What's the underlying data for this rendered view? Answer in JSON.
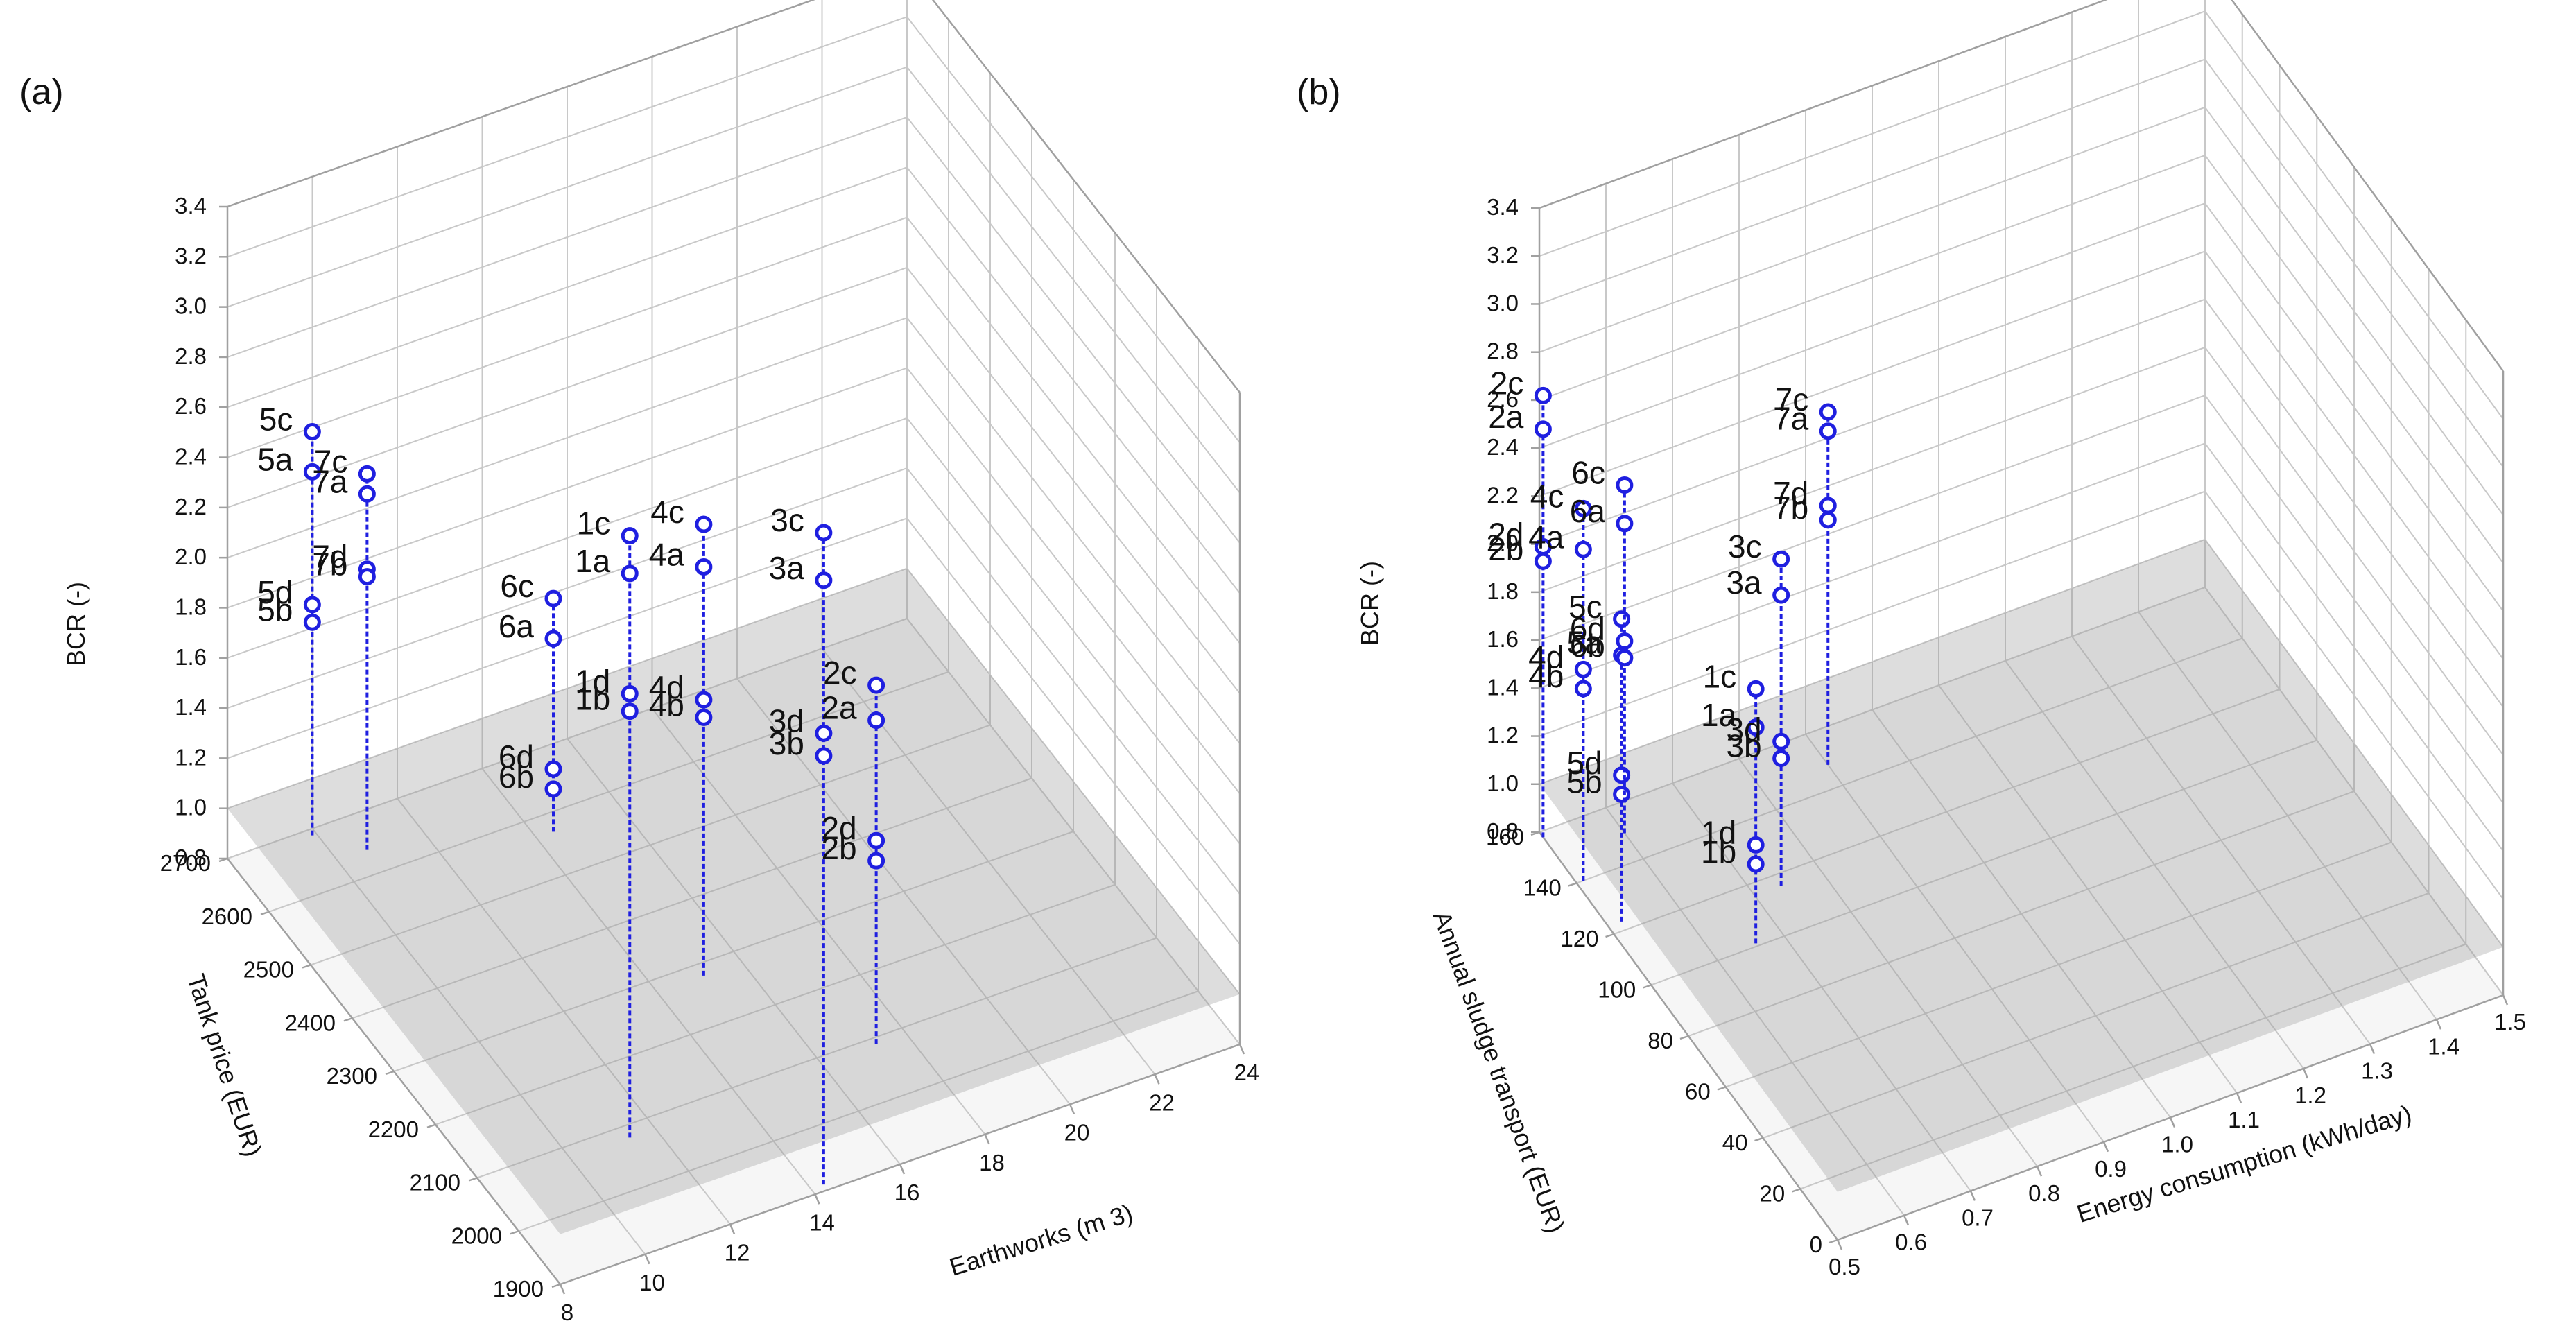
{
  "chart_data": [
    {
      "type": "scatter",
      "subtype": "3d-drop-line",
      "panel_label": "(a)",
      "xlabel": "Earthworks (m 3)",
      "ylabel": "Tank price (EUR)",
      "zlabel": "BCR (-)",
      "xlim": [
        8,
        24
      ],
      "ylim": [
        1900,
        2700
      ],
      "zlim": [
        0.8,
        3.4
      ],
      "xticks": [
        "8",
        "10",
        "12",
        "14",
        "16",
        "18",
        "20",
        "22",
        "24"
      ],
      "yticks": [
        "1900",
        "2000",
        "2100",
        "2200",
        "2300",
        "2400",
        "2500",
        "2600",
        "2700"
      ],
      "zticks": [
        "0.8",
        "1.0",
        "1.2",
        "1.4",
        "1.6",
        "1.8",
        "2.0",
        "2.2",
        "2.4",
        "2.6",
        "2.8",
        "3.0",
        "3.2",
        "3.4"
      ],
      "reference_plane_z": 1.0,
      "stems": [
        {
          "x": 9.9,
          "y": 2690,
          "points": [
            {
              "label": "5c",
              "z": 2.41
            },
            {
              "label": "5a",
              "z": 2.25
            },
            {
              "label": "5d",
              "z": 1.72
            },
            {
              "label": "5b",
              "z": 1.65
            }
          ]
        },
        {
          "x": 10.7,
          "y": 2640,
          "points": [
            {
              "label": "7c",
              "z": 2.3
            },
            {
              "label": "7a",
              "z": 2.22
            },
            {
              "label": "7d",
              "z": 1.92
            },
            {
              "label": "7b",
              "z": 1.89
            }
          ]
        },
        {
          "x": 11.4,
          "y": 2080,
          "points": [
            {
              "label": "1c",
              "z": 3.2
            },
            {
              "label": "1a",
              "z": 3.05
            },
            {
              "label": "1d",
              "z": 2.57
            },
            {
              "label": "1b",
              "z": 2.5
            }
          ]
        },
        {
          "x": 14.4,
          "y": 2570,
          "points": [
            {
              "label": "6c",
              "z": 1.73
            },
            {
              "label": "6a",
              "z": 1.57
            },
            {
              "label": "6d",
              "z": 1.05
            },
            {
              "label": "6b",
              "z": 0.97
            }
          ]
        },
        {
          "x": 15.1,
          "y": 2280,
          "points": [
            {
              "label": "4c",
              "z": 2.6
            },
            {
              "label": "4a",
              "z": 2.43
            },
            {
              "label": "4d",
              "z": 1.9
            },
            {
              "label": "4b",
              "z": 1.83
            }
          ]
        },
        {
          "x": 14.3,
          "y": 1910,
          "points": [
            {
              "label": "3c",
              "z": 3.4
            },
            {
              "label": "3a",
              "z": 3.21
            },
            {
              "label": "3d",
              "z": 2.6
            },
            {
              "label": "3b",
              "z": 2.51
            }
          ]
        },
        {
          "x": 17.3,
          "y": 2090,
          "points": [
            {
              "label": "2c",
              "z": 2.23
            },
            {
              "label": "2a",
              "z": 2.09
            },
            {
              "label": "2d",
              "z": 1.61
            },
            {
              "label": "2b",
              "z": 1.53
            }
          ]
        }
      ]
    },
    {
      "type": "scatter",
      "subtype": "3d-drop-line",
      "panel_label": "(b)",
      "xlabel": "Energy consumption (kWh/day)",
      "ylabel": "Annual sludge transport (EUR)",
      "zlabel": "BCR (-)",
      "xlim": [
        0.5,
        1.5
      ],
      "ylim": [
        0,
        160
      ],
      "zlim": [
        0.8,
        3.4
      ],
      "xticks": [
        "0.5",
        "0.6",
        "0.7",
        "0.8",
        "0.9",
        "1.0",
        "1.1",
        "1.2",
        "1.3",
        "1.4",
        "1.5"
      ],
      "yticks": [
        "0",
        "20",
        "40",
        "60",
        "80",
        "100",
        "120",
        "140",
        "160"
      ],
      "zticks": [
        "0.8",
        "1.0",
        "1.2",
        "1.4",
        "1.6",
        "1.8",
        "2.0",
        "2.2",
        "2.4",
        "2.6",
        "2.8",
        "3.0",
        "3.2",
        "3.4"
      ],
      "reference_plane_z": 1.0,
      "stems": [
        {
          "x": 0.5,
          "y": 158,
          "points": [
            {
              "label": "2c",
              "z": 2.64
            },
            {
              "label": "2a",
              "z": 2.5
            },
            {
              "label": "2d",
              "z": 2.01
            },
            {
              "label": "2b",
              "z": 1.95
            }
          ]
        },
        {
          "x": 0.51,
          "y": 140,
          "points": [
            {
              "label": "4c",
              "z": 2.35
            },
            {
              "label": "4a",
              "z": 2.18
            },
            {
              "label": "4d",
              "z": 1.68
            },
            {
              "label": "4b",
              "z": 1.6
            }
          ]
        },
        {
          "x": 0.52,
          "y": 123,
          "points": [
            {
              "label": "5c",
              "z": 2.06
            },
            {
              "label": "5a",
              "z": 1.91
            },
            {
              "label": "5d",
              "z": 1.41
            },
            {
              "label": "5b",
              "z": 1.33
            }
          ]
        },
        {
          "x": 0.66,
          "y": 101,
          "points": [
            {
              "label": "1c",
              "z": 1.86
            },
            {
              "label": "1a",
              "z": 1.7
            },
            {
              "label": "1d",
              "z": 1.21
            },
            {
              "label": "1b",
              "z": 1.13
            }
          ]
        },
        {
          "x": 0.6,
          "y": 150,
          "points": [
            {
              "label": "6c",
              "z": 2.25
            },
            {
              "label": "6a",
              "z": 2.09
            },
            {
              "label": "6d",
              "z": 1.6
            },
            {
              "label": "6b",
              "z": 1.53
            }
          ]
        },
        {
          "x": 0.74,
          "y": 116,
          "points": [
            {
              "label": "3c",
              "z": 2.16
            },
            {
              "label": "3a",
              "z": 2.01
            },
            {
              "label": "3d",
              "z": 1.4
            },
            {
              "label": "3b",
              "z": 1.33
            }
          ]
        },
        {
          "x": 0.9,
          "y": 148,
          "points": [
            {
              "label": "7c",
              "z": 2.27
            },
            {
              "label": "7a",
              "z": 2.19
            },
            {
              "label": "7d",
              "z": 1.88
            },
            {
              "label": "7b",
              "z": 1.82
            }
          ]
        }
      ]
    }
  ]
}
